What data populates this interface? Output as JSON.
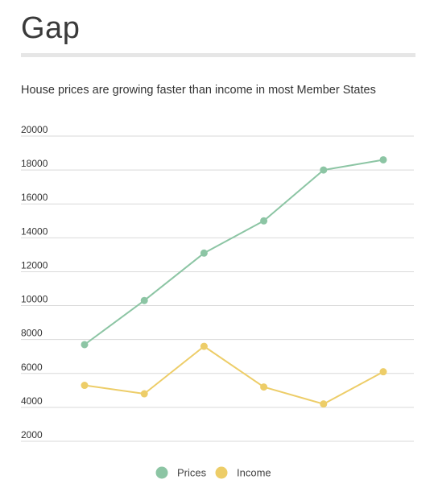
{
  "page": {
    "title": "Gap",
    "subtitle": "House prices are growing faster than income in most Member States"
  },
  "chart_data": {
    "type": "line",
    "title": "",
    "xlabel": "",
    "ylabel": "",
    "x": [
      1,
      2,
      3,
      4,
      5,
      6
    ],
    "y_ticks": [
      2000,
      4000,
      6000,
      8000,
      10000,
      12000,
      14000,
      16000,
      18000,
      20000
    ],
    "ylim": [
      1700,
      20200
    ],
    "grid": true,
    "legend_position": "bottom-center",
    "series": [
      {
        "name": "Prices",
        "color": "#8cc5a4",
        "values": [
          7700,
          10300,
          13100,
          15000,
          18000,
          18600
        ]
      },
      {
        "name": "Income",
        "color": "#edcd68",
        "values": [
          5300,
          4800,
          7600,
          5200,
          4200,
          6100
        ]
      }
    ]
  }
}
